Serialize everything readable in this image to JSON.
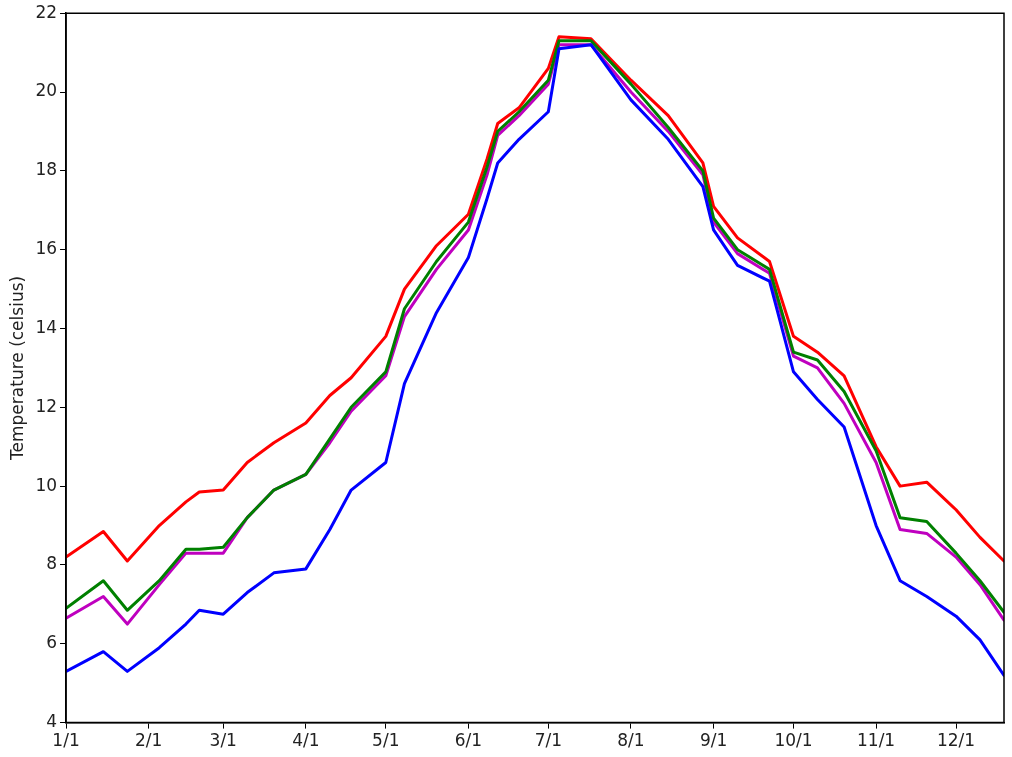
{
  "chart_data": {
    "type": "line",
    "ylabel": "Temperature (celsius)",
    "xlim": [
      "--01-01",
      "--12-19"
    ],
    "ylim": [
      4,
      22
    ],
    "xticks": [
      {
        "value": "--01-01",
        "label": "1/1"
      },
      {
        "value": "--02-01",
        "label": "2/1"
      },
      {
        "value": "--03-01",
        "label": "3/1"
      },
      {
        "value": "--04-01",
        "label": "4/1"
      },
      {
        "value": "--05-01",
        "label": "5/1"
      },
      {
        "value": "--06-01",
        "label": "6/1"
      },
      {
        "value": "--07-01",
        "label": "7/1"
      },
      {
        "value": "--08-01",
        "label": "8/1"
      },
      {
        "value": "--09-01",
        "label": "9/1"
      },
      {
        "value": "--10-01",
        "label": "10/1"
      },
      {
        "value": "--11-01",
        "label": "11/1"
      },
      {
        "value": "--12-01",
        "label": "12/1"
      }
    ],
    "yticks": [
      4,
      6,
      8,
      10,
      12,
      14,
      16,
      18,
      20,
      22
    ],
    "grid": false,
    "legend": false,
    "marker": "none",
    "line_style": "solid",
    "x": [
      "--01-01",
      "--01-15",
      "--01-24",
      "--02-05",
      "--02-15",
      "--02-20",
      "--03-01",
      "--03-10",
      "--03-20",
      "--04-01",
      "--04-10",
      "--04-18",
      "--05-01",
      "--05-08",
      "--05-20",
      "--06-01",
      "--06-08",
      "--06-12",
      "--06-20",
      "--07-01",
      "--07-05",
      "--07-17",
      "--08-01",
      "--08-15",
      "--08-28",
      "--09-01",
      "--09-10",
      "--09-22",
      "--10-01",
      "--10-10",
      "--10-20",
      "--11-01",
      "--11-10",
      "--11-20",
      "--12-01",
      "--12-10",
      "--12-19"
    ],
    "series": [
      {
        "color": "#0000ff",
        "values": [
          5.3,
          5.8,
          5.3,
          5.9,
          6.5,
          6.85,
          6.75,
          7.3,
          7.8,
          7.9,
          8.9,
          9.9,
          10.6,
          12.6,
          14.4,
          15.8,
          17.3,
          18.2,
          18.8,
          19.5,
          21.1,
          21.2,
          19.8,
          18.8,
          17.6,
          16.5,
          15.6,
          15.2,
          12.9,
          12.2,
          11.5,
          9.0,
          7.6,
          7.2,
          6.7,
          6.1,
          5.2
        ]
      },
      {
        "color": "#008000",
        "values": [
          6.9,
          7.6,
          6.85,
          7.6,
          8.4,
          8.4,
          8.45,
          9.2,
          9.9,
          10.3,
          11.2,
          12.0,
          12.9,
          14.5,
          15.7,
          16.7,
          18.1,
          19.0,
          19.5,
          20.3,
          21.3,
          21.3,
          20.2,
          19.1,
          18.0,
          16.8,
          16.0,
          15.5,
          13.4,
          13.2,
          12.4,
          10.9,
          9.2,
          9.1,
          8.3,
          7.6,
          6.8
        ]
      },
      {
        "color": "#bf00bf",
        "values": [
          6.65,
          7.2,
          6.5,
          7.5,
          8.3,
          8.3,
          8.3,
          9.2,
          9.9,
          10.3,
          11.1,
          11.9,
          12.8,
          14.3,
          15.5,
          16.5,
          17.9,
          18.9,
          19.4,
          20.2,
          21.2,
          21.2,
          20.0,
          19.0,
          17.9,
          16.7,
          15.9,
          15.4,
          13.3,
          13.0,
          12.1,
          10.6,
          8.9,
          8.8,
          8.2,
          7.5,
          6.6
        ]
      },
      {
        "color": "#ff0000",
        "values": [
          8.2,
          8.85,
          8.1,
          9.0,
          9.6,
          9.85,
          9.9,
          10.6,
          11.1,
          11.6,
          12.3,
          12.75,
          13.8,
          15.0,
          16.1,
          16.9,
          18.3,
          19.2,
          19.6,
          20.6,
          21.4,
          21.35,
          20.3,
          19.4,
          18.2,
          17.1,
          16.3,
          15.7,
          13.8,
          13.4,
          12.8,
          11.0,
          10.0,
          10.1,
          9.4,
          8.7,
          8.1
        ]
      }
    ]
  }
}
